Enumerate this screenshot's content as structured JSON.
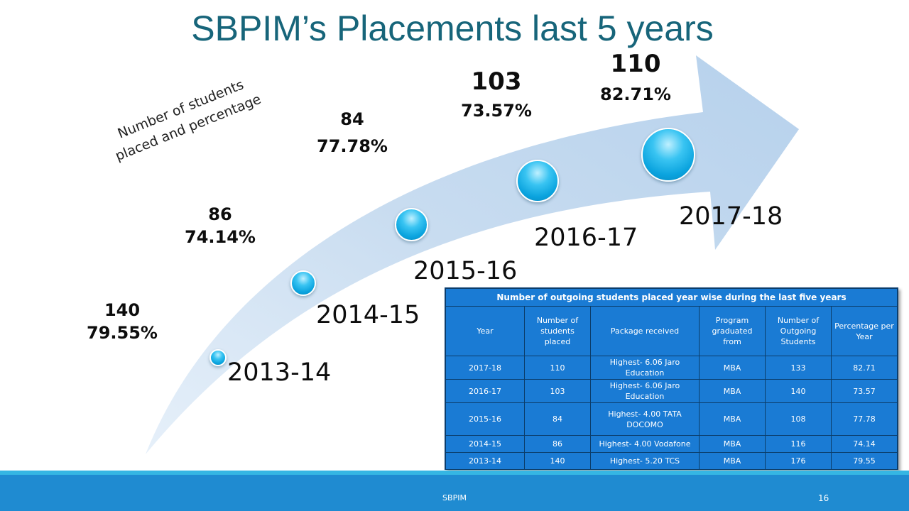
{
  "title": "SBPIM’s Placements last 5 years",
  "subtitle": {
    "line1": "Number of students",
    "line2": "placed and percentage"
  },
  "timeline": [
    {
      "year": "2013-14",
      "placed": "140",
      "percentage": "79.55%"
    },
    {
      "year": "2014-15",
      "placed": "86",
      "percentage": "74.14%"
    },
    {
      "year": "2015-16",
      "placed": "84",
      "percentage": "77.78%"
    },
    {
      "year": "2016-17",
      "placed": "103",
      "percentage": "73.57%"
    },
    {
      "year": "2017-18",
      "placed": "110",
      "percentage": "82.71%"
    }
  ],
  "table": {
    "caption": "Number of outgoing students placed year wise during the last five years",
    "headers": [
      "Year",
      "Number of students placed",
      "Package received",
      "Program graduated from",
      "Number of Outgoing Students",
      "Percentage per Year"
    ],
    "rows": [
      [
        "2017-18",
        "110",
        "Highest- 6.06 Jaro Education",
        "MBA",
        "133",
        "82.71"
      ],
      [
        "2016-17",
        "103",
        "Highest- 6.06 Jaro Education",
        "MBA",
        "140",
        "73.57"
      ],
      [
        "2015-16",
        "84",
        "Highest- 4.00 TATA DOCOMO",
        "MBA",
        "108",
        "77.78"
      ],
      [
        "2014-15",
        "86",
        "Highest- 4.00 Vodafone",
        "MBA",
        "116",
        "74.14"
      ],
      [
        "2013-14",
        "140",
        "Highest- 5.20 TCS",
        "MBA",
        "176",
        "79.55"
      ]
    ]
  },
  "footer": {
    "name": "SBPIM",
    "page": "16"
  },
  "colors": {
    "title": "#17657a",
    "arrow": "#c9ddf0",
    "table_bg": "#1a7bd4",
    "footer": "#1f8bd1",
    "dot": "#0aa3de"
  }
}
